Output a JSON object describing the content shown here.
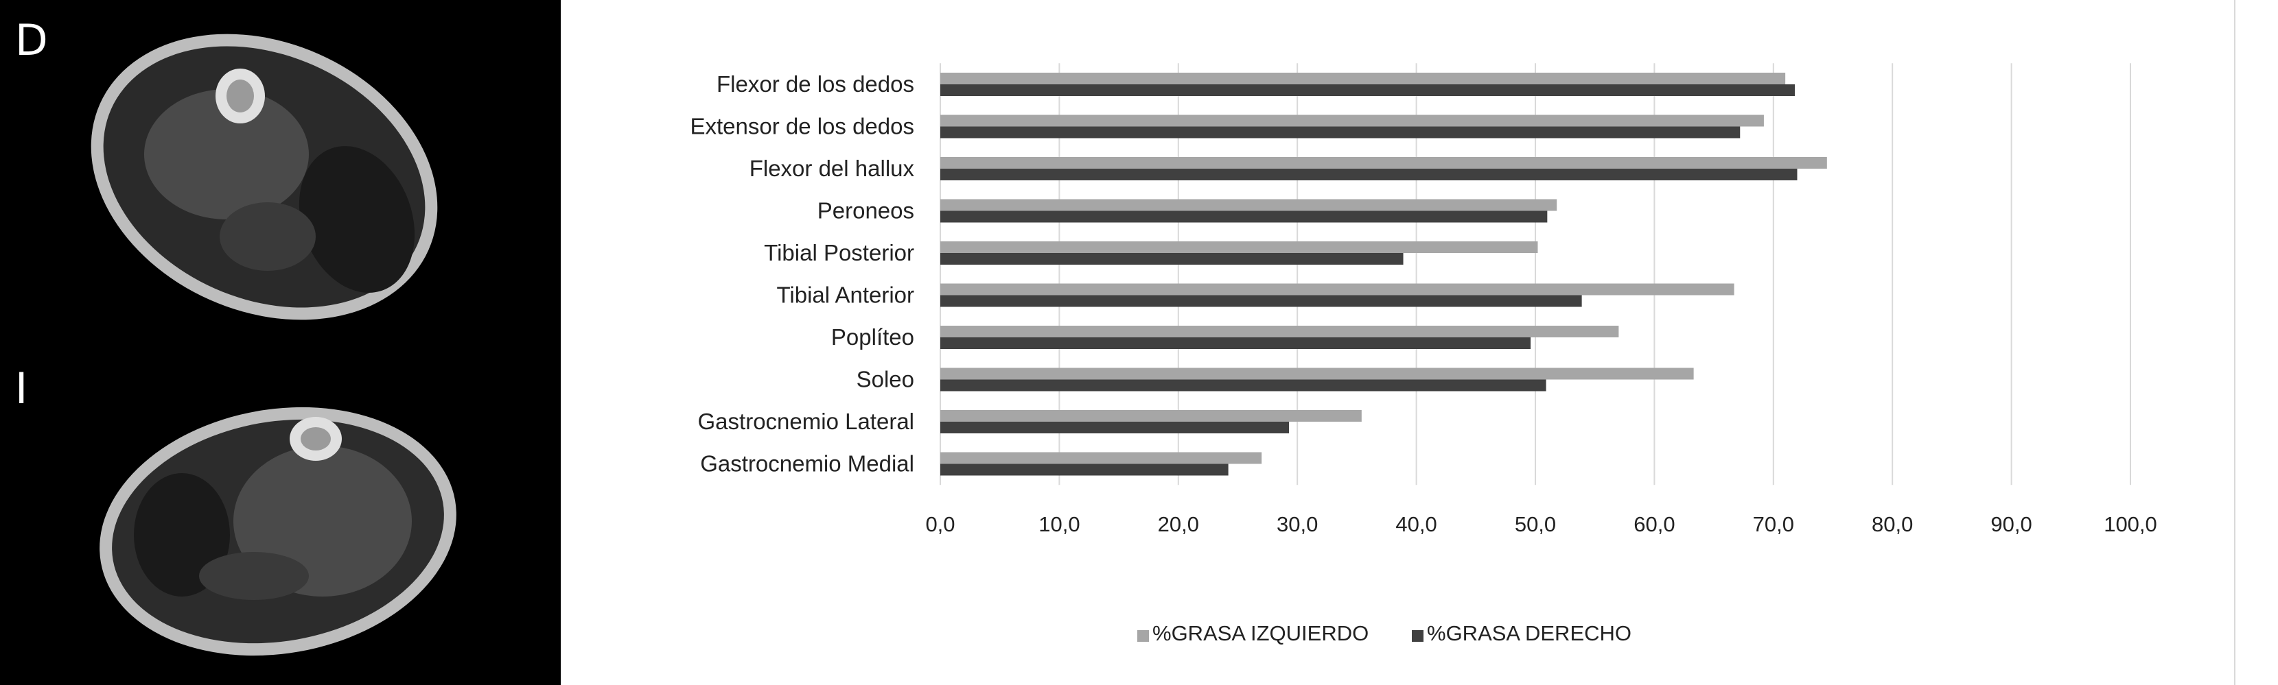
{
  "panel_labels": {
    "top": "D",
    "bottom": "I"
  },
  "chart_data": {
    "type": "bar",
    "orientation": "horizontal",
    "categories": [
      "Flexor de los dedos",
      "Extensor de los dedos",
      "Flexor del hallux",
      "Peroneos",
      "Tibial Posterior",
      "Tibial Anterior",
      "Poplíteo",
      "Soleo",
      "Gastrocnemio Lateral",
      "Gastrocnemio Medial"
    ],
    "series": [
      {
        "name": "%GRASA IZQUIERDO",
        "color": "#a6a6a6",
        "values": [
          71.0,
          69.2,
          74.5,
          51.8,
          50.2,
          66.7,
          57.0,
          63.3,
          35.4,
          27.0
        ]
      },
      {
        "name": "%GRASA DERECHO",
        "color": "#404040",
        "values": [
          71.8,
          67.2,
          72.0,
          51.0,
          38.9,
          53.9,
          49.6,
          50.9,
          29.3,
          24.2
        ]
      }
    ],
    "xlim": [
      0,
      100
    ],
    "x_ticks": [
      "0,0",
      "10,0",
      "20,0",
      "30,0",
      "40,0",
      "50,0",
      "60,0",
      "70,0",
      "80,0",
      "90,0",
      "100,0"
    ],
    "grid": true,
    "gridline_color": "#d9d9d9",
    "legend_position": "bottom"
  }
}
